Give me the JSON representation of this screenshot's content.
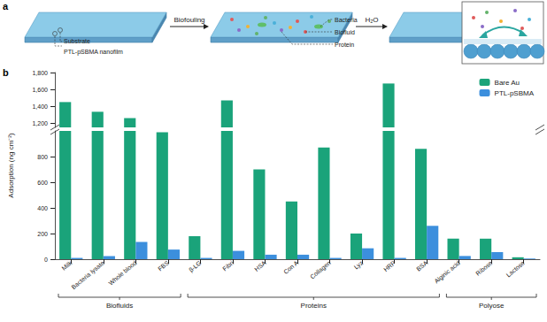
{
  "panel_a": {
    "label": "a",
    "arrow_1": "Biofouling",
    "arrow_2": "H₂O",
    "slab_1_labels": [
      "Substrate",
      "PTL-pSBMA nanofilm"
    ],
    "slab_2_labels": [
      "Bacteria",
      "Biofluid",
      "Protein"
    ]
  },
  "panel_b": {
    "label": "b"
  },
  "chart_data": {
    "type": "bar",
    "y_label": "Adsorption (ng cm⁻²)",
    "categories": [
      "Milk",
      "Bacteria lysate",
      "Whole blood",
      "FBS",
      "β-LG",
      "Fibri",
      "HSA",
      "Con A",
      "Collagen",
      "Lyz",
      "HRP",
      "BSA",
      "Alginic acid",
      "Ribose",
      "Lactose"
    ],
    "series": [
      {
        "name": "Bare Au",
        "color": "#1aa37a",
        "values": [
          1450,
          1335,
          1260,
          990,
          180,
          1470,
          700,
          450,
          870,
          200,
          1670,
          860,
          160,
          160,
          15
        ]
      },
      {
        "name": "PTL-pSBMA",
        "color": "#3c8fdd",
        "values": [
          10,
          25,
          135,
          75,
          10,
          65,
          35,
          35,
          10,
          85,
          10,
          260,
          25,
          55,
          5
        ]
      }
    ],
    "y_segments": [
      {
        "ylim": [
          0,
          1000
        ],
        "yticks": [
          0,
          200,
          400,
          600,
          800
        ]
      },
      {
        "ylim": [
          1150,
          1800
        ],
        "yticks": [
          {
            "value": 1200,
            "label": "1,200"
          },
          {
            "value": 1400,
            "label": "1,400"
          },
          {
            "value": 1600,
            "label": "1,600"
          },
          {
            "value": 1800,
            "label": "1,800"
          }
        ]
      }
    ],
    "groups": [
      {
        "name": "Biofluids",
        "from": "Milk",
        "to": "FBS"
      },
      {
        "name": "Proteins",
        "from": "β-LG",
        "to": "BSA"
      },
      {
        "name": "Polyose",
        "from": "Alginic acid",
        "to": "Lactose"
      }
    ],
    "legend": "top-right",
    "grid": false
  }
}
